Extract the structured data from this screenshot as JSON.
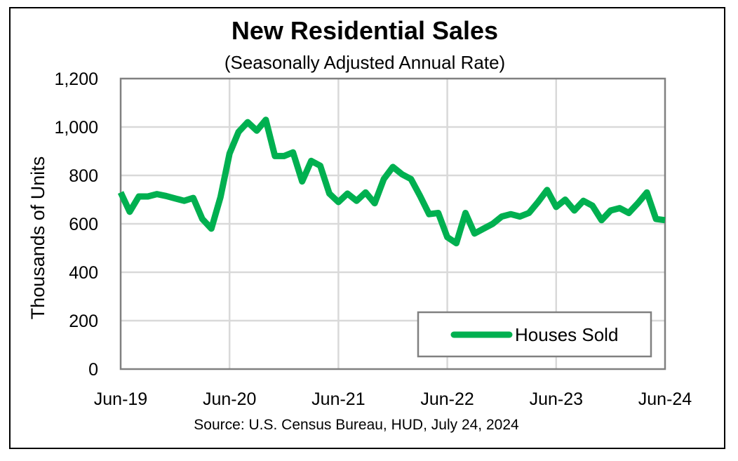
{
  "chart_data": {
    "type": "line",
    "title": "New Residential Sales",
    "subtitle": "(Seasonally Adjusted Annual Rate)",
    "ylabel": "Thousands of Units",
    "xlabel": "",
    "source": "Source:  U.S. Census Bureau, HUD, July 24, 2024",
    "ylim": [
      0,
      1200
    ],
    "y_ticks": [
      0,
      200,
      400,
      600,
      800,
      1000,
      1200
    ],
    "y_tick_labels": [
      "0",
      "200",
      "400",
      "600",
      "800",
      "1,000",
      "1,200"
    ],
    "x_ticks": [
      "2019-06",
      "2020-06",
      "2021-06",
      "2022-06",
      "2023-06",
      "2024-06"
    ],
    "x_tick_labels": [
      "Jun-19",
      "Jun-20",
      "Jun-21",
      "Jun-22",
      "Jun-23",
      "Jun-24"
    ],
    "xlim": [
      "2019-06",
      "2024-06"
    ],
    "grid": true,
    "legend": {
      "position": "bottom-right",
      "entries": [
        "Houses Sold"
      ]
    },
    "series": [
      {
        "name": "Houses Sold",
        "color": "#00b050",
        "x": [
          "2019-06",
          "2019-07",
          "2019-08",
          "2019-09",
          "2019-10",
          "2019-11",
          "2019-12",
          "2020-01",
          "2020-02",
          "2020-03",
          "2020-04",
          "2020-05",
          "2020-06",
          "2020-07",
          "2020-08",
          "2020-09",
          "2020-10",
          "2020-11",
          "2020-12",
          "2021-01",
          "2021-02",
          "2021-03",
          "2021-04",
          "2021-05",
          "2021-06",
          "2021-07",
          "2021-08",
          "2021-09",
          "2021-10",
          "2021-11",
          "2021-12",
          "2022-01",
          "2022-02",
          "2022-03",
          "2022-04",
          "2022-05",
          "2022-06",
          "2022-07",
          "2022-08",
          "2022-09",
          "2022-10",
          "2022-11",
          "2022-12",
          "2023-01",
          "2023-02",
          "2023-03",
          "2023-04",
          "2023-05",
          "2023-06",
          "2023-07",
          "2023-08",
          "2023-09",
          "2023-10",
          "2023-11",
          "2023-12",
          "2024-01",
          "2024-02",
          "2024-03",
          "2024-04",
          "2024-05",
          "2024-06"
        ],
        "values": [
          730,
          650,
          713,
          713,
          723,
          715,
          705,
          695,
          707,
          620,
          580,
          710,
          890,
          980,
          1020,
          985,
          1030,
          880,
          880,
          895,
          775,
          860,
          840,
          725,
          690,
          725,
          695,
          730,
          685,
          785,
          835,
          805,
          785,
          715,
          640,
          645,
          545,
          520,
          645,
          560,
          580,
          600,
          630,
          640,
          630,
          645,
          690,
          740,
          670,
          700,
          655,
          695,
          675,
          615,
          655,
          665,
          645,
          685,
          730,
          620,
          615
        ]
      }
    ]
  }
}
